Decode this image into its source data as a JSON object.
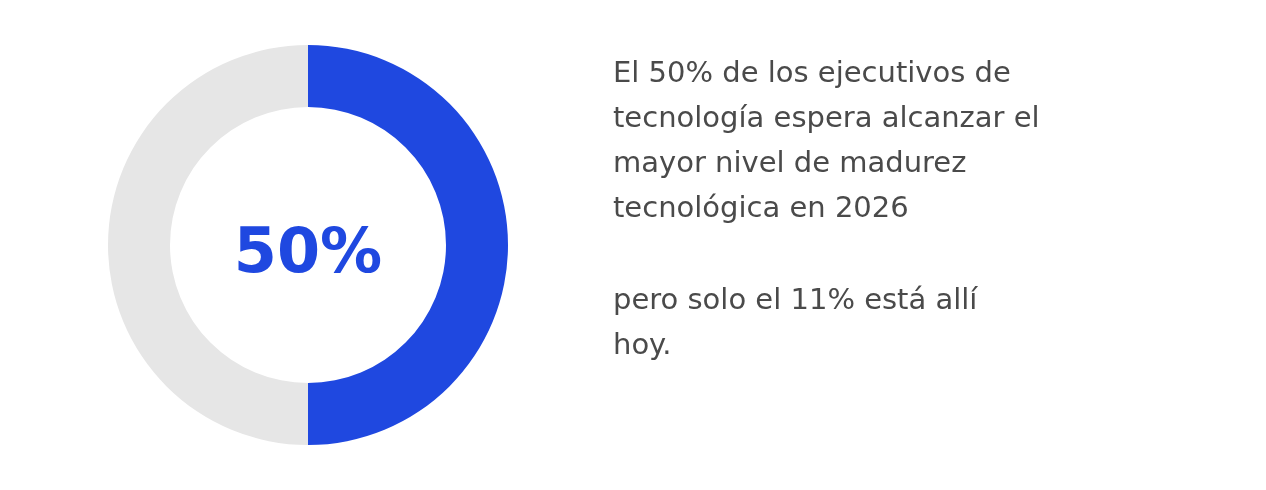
{
  "chart_data": {
    "type": "donut",
    "categories": [
      null,
      null
    ],
    "values": [
      50,
      50
    ],
    "colors": [
      "#1f48e0",
      "#e6e6e6"
    ],
    "value_labels": [
      "50%",
      null
    ],
    "annotations": [
      "El 50% de los ejecutivos de tecnología espera alcanzar el mayor nivel de madurez tecnológica en 2026",
      "pero solo el 11% está allí hoy."
    ]
  }
}
